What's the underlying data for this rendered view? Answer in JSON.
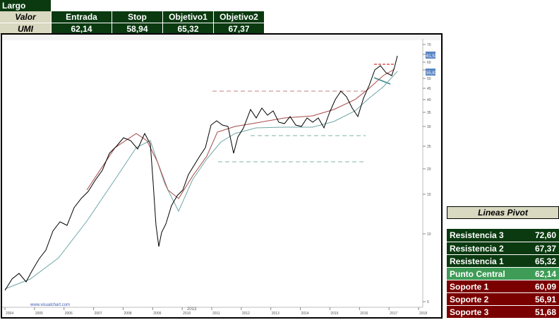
{
  "trade": {
    "title": "Largo",
    "headers": [
      "Valor",
      "Entrada",
      "Stop",
      "Objetivo1",
      "Objetivo2"
    ],
    "row": [
      "UMI",
      "62,14",
      "58,94",
      "65,32",
      "67,37"
    ]
  },
  "chart": {
    "footer_text": "www.visualchart.com",
    "center_label": "2013",
    "x_ticks": [
      "2004",
      "2005",
      "2006",
      "2007",
      "2008",
      "2009",
      "2010",
      "2011",
      "2012",
      "2013",
      "2014",
      "2015",
      "2016",
      "2017",
      "2018"
    ],
    "y_ticks": [
      "70",
      "65",
      "60",
      "55",
      "50",
      "45",
      "40",
      "35",
      "30",
      "25",
      "20",
      "15",
      "10",
      "5"
    ],
    "price_tags": [
      "61,53",
      "55,83"
    ]
  },
  "pivot": {
    "title": "Lineas Pivot",
    "rows": [
      {
        "label": "Resistencia 3",
        "value": "72,60",
        "color": "#0b3a10"
      },
      {
        "label": "Resistencia 2",
        "value": "67,37",
        "color": "#0b3a10"
      },
      {
        "label": "Resistencia 1",
        "value": "65,32",
        "color": "#0b3a10"
      },
      {
        "label": "Punto Central",
        "value": "62,14",
        "color": "#3f9c57"
      },
      {
        "label": "Soporte 1",
        "value": "60,09",
        "color": "#7a0000"
      },
      {
        "label": "Soporte 2",
        "value": "56,91",
        "color": "#7a0000"
      },
      {
        "label": "Soporte 3",
        "value": "51,68",
        "color": "#7a0000"
      }
    ]
  }
}
